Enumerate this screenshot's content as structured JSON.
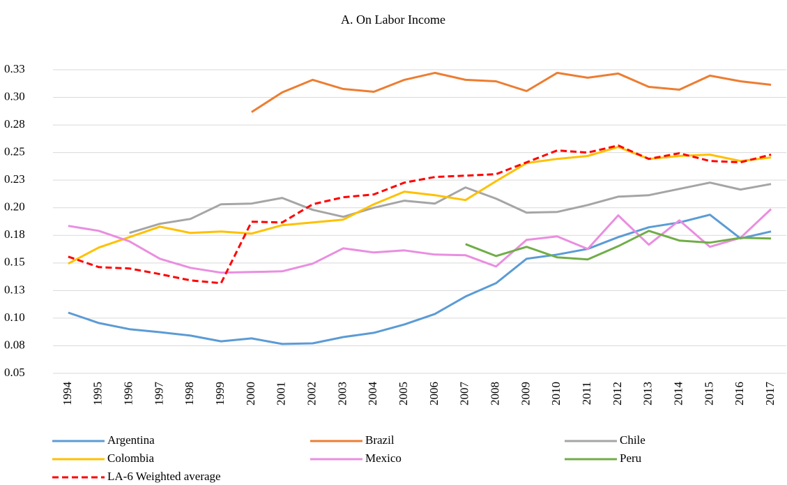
{
  "chart_data": {
    "type": "line",
    "title": "A. On Labor Income",
    "categories": [
      "1994",
      "1995",
      "1996",
      "1997",
      "1998",
      "1999",
      "2000",
      "2001",
      "2002",
      "2003",
      "2004",
      "2005",
      "2006",
      "2007",
      "2008",
      "2009",
      "2010",
      "2011",
      "2012",
      "2013",
      "2014",
      "2015",
      "2016",
      "2017"
    ],
    "ylim": [
      0.05,
      0.325
    ],
    "yticks": [
      0.05,
      {
        "value": 0.075,
        "label": "0.08"
      },
      {
        "value": 0.1,
        "label": "0.10"
      },
      {
        "value": 0.125,
        "label": "0.13"
      },
      0.15,
      {
        "value": 0.175,
        "label": "0.18"
      },
      {
        "value": 0.2,
        "label": "0.20"
      },
      {
        "value": 0.225,
        "label": "0.23"
      },
      0.25,
      {
        "value": 0.275,
        "label": "0.28"
      },
      {
        "value": 0.3,
        "label": "0.30"
      },
      {
        "value": 0.325,
        "label": "0.33"
      }
    ],
    "grid": true,
    "series": [
      {
        "name": "Argentina",
        "color": "#5b9bd5",
        "values": [
          0.105,
          0.0956,
          0.09,
          0.0873,
          0.0842,
          0.079,
          0.0817,
          0.0766,
          0.0772,
          0.0829,
          0.0867,
          0.0943,
          0.1038,
          0.1196,
          0.1317,
          0.1538,
          0.1576,
          0.1627,
          0.1734,
          0.1823,
          0.1867,
          0.1937,
          0.1722,
          0.1785
        ]
      },
      {
        "name": "Brazil",
        "color": "#ed7d31",
        "values": [
          null,
          null,
          null,
          null,
          null,
          null,
          0.2867,
          0.3045,
          0.3159,
          0.3076,
          0.3051,
          0.3159,
          0.3222,
          0.3159,
          0.3146,
          0.3057,
          0.3222,
          0.3178,
          0.3216,
          0.3095,
          0.307,
          0.3197,
          0.3146,
          0.3114
        ]
      },
      {
        "name": "Chile",
        "color": "#a5a5a5",
        "values": [
          null,
          null,
          0.1772,
          0.1855,
          0.1899,
          0.2032,
          0.2038,
          0.2089,
          0.1981,
          0.1918,
          0.2,
          0.2064,
          0.2038,
          0.2184,
          0.2083,
          0.1956,
          0.1962,
          0.2025,
          0.2101,
          0.2114,
          0.2171,
          0.2228,
          0.2165,
          0.2215
        ]
      },
      {
        "name": "Colombia",
        "color": "#ffc000",
        "values": [
          0.1494,
          0.164,
          0.1734,
          0.1829,
          0.1772,
          0.1785,
          0.1766,
          0.1842,
          0.1867,
          0.1893,
          0.2032,
          0.2146,
          0.2114,
          0.207,
          0.2241,
          0.2405,
          0.2443,
          0.2469,
          0.2551,
          0.2443,
          0.2469,
          0.2481,
          0.2424,
          0.2456
        ]
      },
      {
        "name": "Mexico",
        "color": "#e98ee0",
        "values": [
          0.1836,
          0.1791,
          0.1696,
          0.1538,
          0.1456,
          0.1412,
          0.1418,
          0.1424,
          0.1494,
          0.1633,
          0.1595,
          0.1614,
          0.1576,
          0.157,
          0.1468,
          0.1709,
          0.1741,
          0.1627,
          0.1931,
          0.1665,
          0.1886,
          0.1646,
          0.1728,
          0.1988
        ]
      },
      {
        "name": "Peru",
        "color": "#70ad47",
        "values": [
          null,
          null,
          null,
          null,
          null,
          null,
          null,
          null,
          null,
          null,
          null,
          null,
          null,
          0.1671,
          0.1563,
          0.1646,
          0.1551,
          0.1532,
          0.1652,
          0.1791,
          0.1703,
          0.1684,
          0.1728,
          0.1722
        ]
      },
      {
        "name": "LA-6 Weighted average",
        "color": "#ff0000",
        "dashed": true,
        "values": [
          0.1557,
          0.1462,
          0.145,
          0.1399,
          0.1342,
          0.1317,
          0.1874,
          0.1867,
          0.2032,
          0.2095,
          0.2121,
          0.2228,
          0.2279,
          0.2291,
          0.2304,
          0.2412,
          0.2519,
          0.25,
          0.2564,
          0.2443,
          0.2494,
          0.2424,
          0.2412,
          0.2481
        ]
      }
    ]
  }
}
